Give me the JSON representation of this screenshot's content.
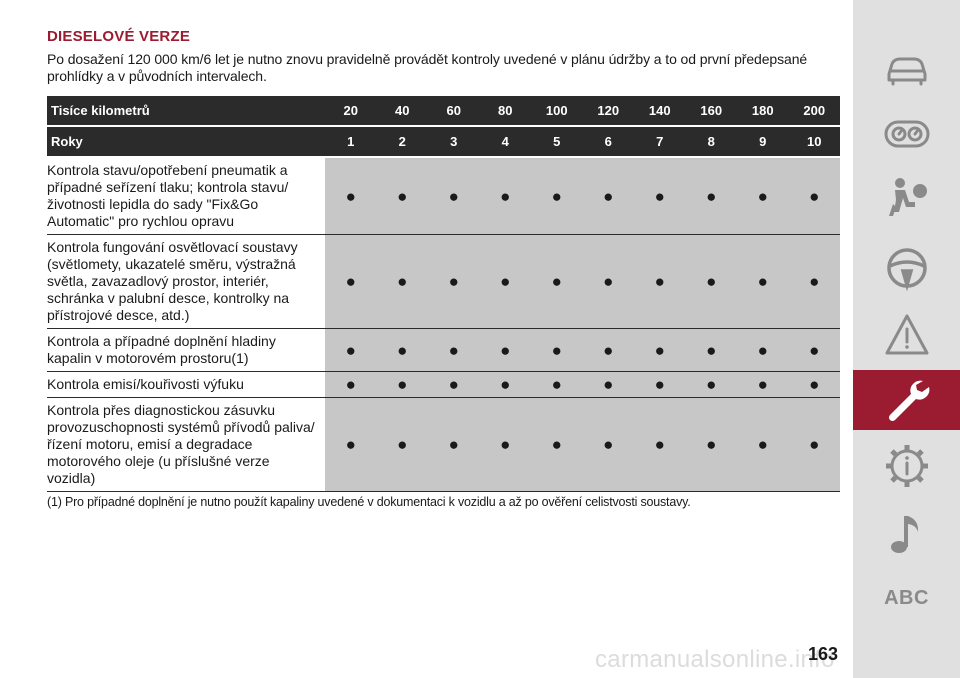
{
  "section": {
    "heading": "DIESELOVÉ VERZE",
    "intro": "Po dosažení 120 000 km/6 let je nutno znovu pravidelně provádět kontroly uvedené v plánu údržby a to od první předepsané prohlídky a v původních intervalech."
  },
  "table": {
    "km_label": "Tisíce kilometrů",
    "km": [
      "20",
      "40",
      "60",
      "80",
      "100",
      "120",
      "140",
      "160",
      "180",
      "200"
    ],
    "years_label": "Roky",
    "years": [
      "1",
      "2",
      "3",
      "4",
      "5",
      "6",
      "7",
      "8",
      "9",
      "10"
    ],
    "dot_symbol": "●",
    "rows": [
      "Kontrola stavu/opotřebení pneumatik a případné seřízení tlaku; kontrola stavu/životnosti lepidla do sady \"Fix&Go Automatic\" pro rychlou opravu",
      "Kontrola fungování osvětlovací soustavy (světlomety, ukazatelé směru, výstražná světla, zavazadlový prostor, interiér, schránka v palubní desce, kontrolky na přístrojové desce, atd.)",
      "Kontrola a případné doplnění hladiny kapalin v motorovém prostoru(1)",
      "Kontrola emisí/kouřivosti výfuku",
      "Kontrola přes diagnostickou zásuvku provozuschopnosti systémů přívodů paliva/řízení motoru, emisí a degradace motorového oleje (u příslušné verze vozidla)"
    ]
  },
  "footnote": "(1) Pro případné doplnění je nutno použít kapaliny uvedené v dokumentaci k vozidlu a až po ověření celistvosti soustavy.",
  "sidebar": {
    "icons": [
      "car-icon",
      "gauge-icon",
      "airbag-person-icon",
      "steering-wheel-icon",
      "warning-triangle-icon",
      "wrench-icon",
      "gear-info-icon",
      "music-note-icon"
    ],
    "active": "wrench-icon",
    "abc_label": "ABC"
  },
  "page_number": "163",
  "watermark": "carmanualsonline.info",
  "colors": {
    "accent": "#9b1b30",
    "header_bg": "#2b2b2b",
    "cell_bg": "#c7c7c7",
    "sidebar_bg": "#e0e0e0",
    "icon_gray": "#8a8a8a"
  }
}
